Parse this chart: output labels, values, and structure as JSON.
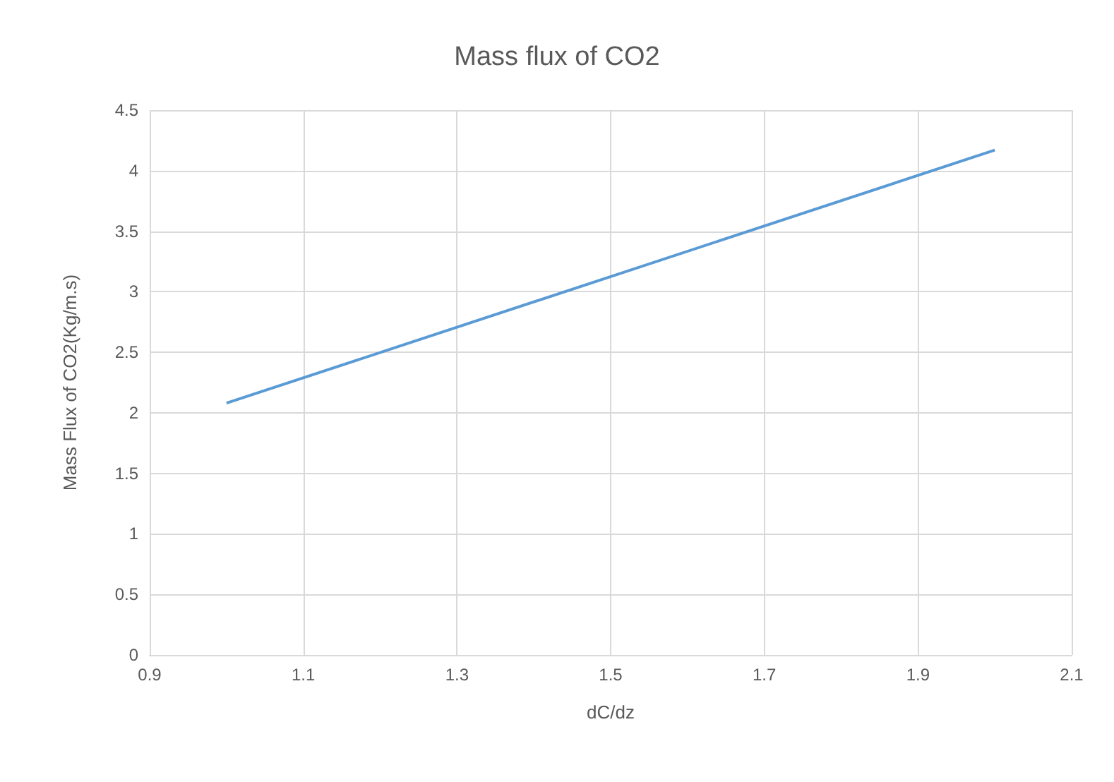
{
  "chart_data": {
    "type": "line",
    "title": "Mass flux of CO2",
    "xlabel": "dC/dz",
    "ylabel": "Mass Flux of CO2(Kg/m.s)",
    "x": [
      1.0,
      2.0
    ],
    "series": [
      {
        "color": "#5b9bd5",
        "values": [
          2.08,
          4.17
        ]
      }
    ],
    "xlim": [
      0.9,
      2.1
    ],
    "xticks": [
      0.9,
      1.1,
      1.3,
      1.5,
      1.7,
      1.9,
      2.1
    ],
    "ylim": [
      0,
      4.5
    ],
    "yticks": [
      0,
      0.5,
      1,
      1.5,
      2,
      2.5,
      3,
      3.5,
      4,
      4.5
    ],
    "grid": true,
    "marker": "none",
    "line_style": "solid"
  }
}
